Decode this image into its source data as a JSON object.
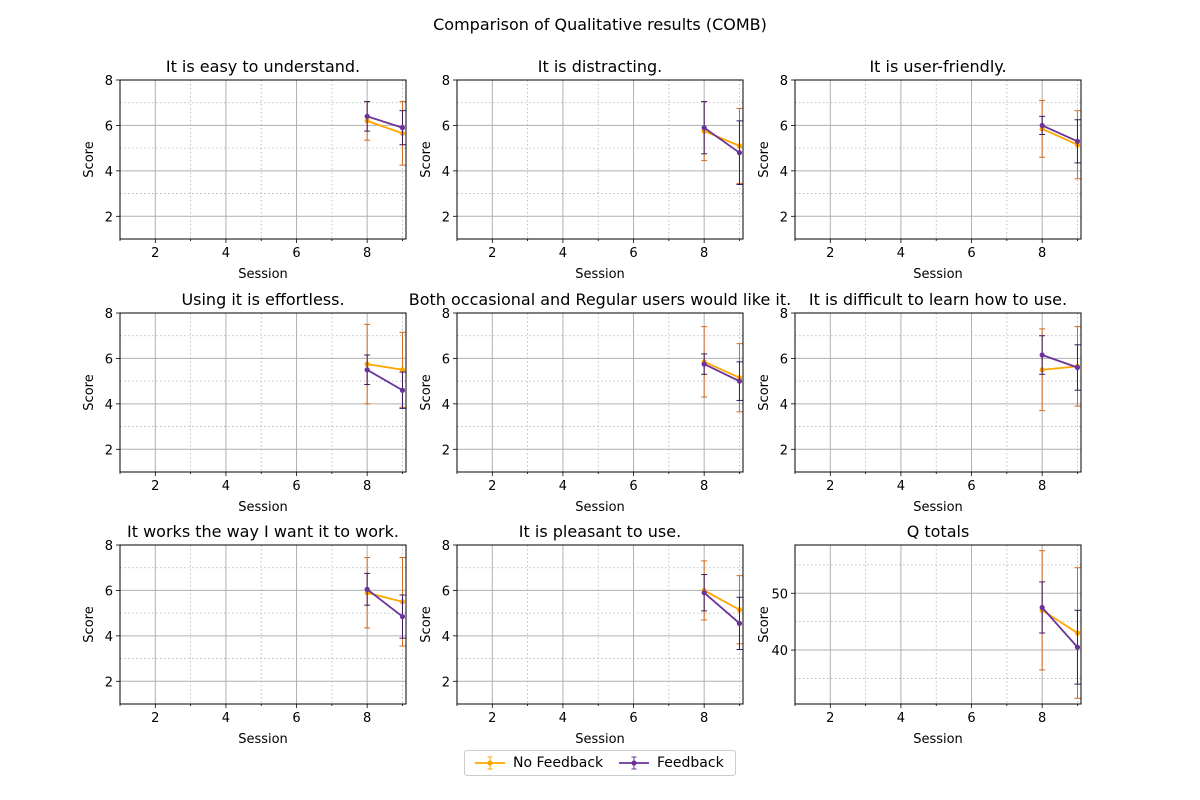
{
  "figure_title": "Comparison of Qualitative results (COMB)",
  "legend": {
    "items": [
      {
        "label": "No Feedback",
        "color": "#FFA500"
      },
      {
        "label": "Feedback",
        "color": "#6A339A"
      }
    ]
  },
  "chart_data": [
    {
      "type": "line",
      "title": "It is easy to understand.",
      "xlabel": "Session",
      "ylabel": "Score",
      "xlim": [
        1,
        9.1
      ],
      "ylim": [
        1,
        8
      ],
      "xticks": [
        2,
        4,
        6,
        8
      ],
      "yticks": [
        2,
        4,
        6,
        8
      ],
      "grid": {
        "major": true,
        "minor": true
      },
      "series": [
        {
          "name": "No Feedback",
          "x": [
            8,
            9
          ],
          "y": [
            6.2,
            5.65
          ],
          "yerr": [
            0.85,
            1.4
          ]
        },
        {
          "name": "Feedback",
          "x": [
            8,
            9
          ],
          "y": [
            6.4,
            5.9
          ],
          "yerr": [
            0.65,
            0.75
          ]
        }
      ]
    },
    {
      "type": "line",
      "title": "It is distracting.",
      "xlabel": "Session",
      "ylabel": "Score",
      "xlim": [
        1,
        9.1
      ],
      "ylim": [
        1,
        8
      ],
      "xticks": [
        2,
        4,
        6,
        8
      ],
      "yticks": [
        2,
        4,
        6,
        8
      ],
      "grid": {
        "major": true,
        "minor": true
      },
      "series": [
        {
          "name": "No Feedback",
          "x": [
            8,
            9
          ],
          "y": [
            5.75,
            5.1
          ],
          "yerr": [
            1.3,
            1.65
          ]
        },
        {
          "name": "Feedback",
          "x": [
            8,
            9
          ],
          "y": [
            5.9,
            4.8
          ],
          "yerr": [
            1.15,
            1.4
          ]
        }
      ]
    },
    {
      "type": "line",
      "title": "It is user-friendly.",
      "xlabel": "Session",
      "ylabel": "Score",
      "xlim": [
        1,
        9.1
      ],
      "ylim": [
        1,
        8
      ],
      "xticks": [
        2,
        4,
        6,
        8
      ],
      "yticks": [
        2,
        4,
        6,
        8
      ],
      "grid": {
        "major": true,
        "minor": true
      },
      "series": [
        {
          "name": "No Feedback",
          "x": [
            8,
            9
          ],
          "y": [
            5.85,
            5.15
          ],
          "yerr": [
            1.25,
            1.5
          ]
        },
        {
          "name": "Feedback",
          "x": [
            8,
            9
          ],
          "y": [
            6.0,
            5.3
          ],
          "yerr": [
            0.4,
            0.95
          ]
        }
      ]
    },
    {
      "type": "line",
      "title": "Using it is effortless.",
      "xlabel": "Session",
      "ylabel": "Score",
      "xlim": [
        1,
        9.1
      ],
      "ylim": [
        1,
        8
      ],
      "xticks": [
        2,
        4,
        6,
        8
      ],
      "yticks": [
        2,
        4,
        6,
        8
      ],
      "grid": {
        "major": true,
        "minor": true
      },
      "series": [
        {
          "name": "No Feedback",
          "x": [
            8,
            9
          ],
          "y": [
            5.75,
            5.5
          ],
          "yerr": [
            1.75,
            1.65
          ]
        },
        {
          "name": "Feedback",
          "x": [
            8,
            9
          ],
          "y": [
            5.5,
            4.6
          ],
          "yerr": [
            0.65,
            0.8
          ]
        }
      ]
    },
    {
      "type": "line",
      "title": "Both occasional and Regular users would like it.",
      "xlabel": "Session",
      "ylabel": "Score",
      "xlim": [
        1,
        9.1
      ],
      "ylim": [
        1,
        8
      ],
      "xticks": [
        2,
        4,
        6,
        8
      ],
      "yticks": [
        2,
        4,
        6,
        8
      ],
      "grid": {
        "major": true,
        "minor": true
      },
      "series": [
        {
          "name": "No Feedback",
          "x": [
            8,
            9
          ],
          "y": [
            5.85,
            5.15
          ],
          "yerr": [
            1.55,
            1.5
          ]
        },
        {
          "name": "Feedback",
          "x": [
            8,
            9
          ],
          "y": [
            5.75,
            5.0
          ],
          "yerr": [
            0.45,
            0.85
          ]
        }
      ]
    },
    {
      "type": "line",
      "title": "It is difficult to learn how to use.",
      "xlabel": "Session",
      "ylabel": "Score",
      "xlim": [
        1,
        9.1
      ],
      "ylim": [
        1,
        8
      ],
      "xticks": [
        2,
        4,
        6,
        8
      ],
      "yticks": [
        2,
        4,
        6,
        8
      ],
      "grid": {
        "major": true,
        "minor": true
      },
      "series": [
        {
          "name": "No Feedback",
          "x": [
            8,
            9
          ],
          "y": [
            5.5,
            5.65
          ],
          "yerr": [
            1.8,
            1.75
          ]
        },
        {
          "name": "Feedback",
          "x": [
            8,
            9
          ],
          "y": [
            6.15,
            5.6
          ],
          "yerr": [
            0.85,
            1.0
          ]
        }
      ]
    },
    {
      "type": "line",
      "title": "It works the way I want it to work.",
      "xlabel": "Session",
      "ylabel": "Score",
      "xlim": [
        1,
        9.1
      ],
      "ylim": [
        1,
        8
      ],
      "xticks": [
        2,
        4,
        6,
        8
      ],
      "yticks": [
        2,
        4,
        6,
        8
      ],
      "grid": {
        "major": true,
        "minor": true
      },
      "series": [
        {
          "name": "No Feedback",
          "x": [
            8,
            9
          ],
          "y": [
            5.9,
            5.5
          ],
          "yerr": [
            1.55,
            1.95
          ]
        },
        {
          "name": "Feedback",
          "x": [
            8,
            9
          ],
          "y": [
            6.05,
            4.85
          ],
          "yerr": [
            0.7,
            0.95
          ]
        }
      ]
    },
    {
      "type": "line",
      "title": "It is pleasant to use.",
      "xlabel": "Session",
      "ylabel": "Score",
      "xlim": [
        1,
        9.1
      ],
      "ylim": [
        1,
        8
      ],
      "xticks": [
        2,
        4,
        6,
        8
      ],
      "yticks": [
        2,
        4,
        6,
        8
      ],
      "grid": {
        "major": true,
        "minor": true
      },
      "series": [
        {
          "name": "No Feedback",
          "x": [
            8,
            9
          ],
          "y": [
            6.0,
            5.15
          ],
          "yerr": [
            1.3,
            1.5
          ]
        },
        {
          "name": "Feedback",
          "x": [
            8,
            9
          ],
          "y": [
            5.9,
            4.55
          ],
          "yerr": [
            0.8,
            1.15
          ]
        }
      ]
    },
    {
      "type": "line",
      "title": "Q totals",
      "xlabel": "Session",
      "ylabel": "Score",
      "xlim": [
        1,
        9.1
      ],
      "ylim": [
        30.5,
        58.5
      ],
      "xticks": [
        2,
        4,
        6,
        8
      ],
      "yticks": [
        40,
        50
      ],
      "grid": {
        "major": true,
        "minor": true
      },
      "series": [
        {
          "name": "No Feedback",
          "x": [
            8,
            9
          ],
          "y": [
            47.0,
            43.0
          ],
          "yerr": [
            10.5,
            11.5
          ]
        },
        {
          "name": "Feedback",
          "x": [
            8,
            9
          ],
          "y": [
            47.5,
            40.5
          ],
          "yerr": [
            4.5,
            6.5
          ]
        }
      ]
    }
  ]
}
